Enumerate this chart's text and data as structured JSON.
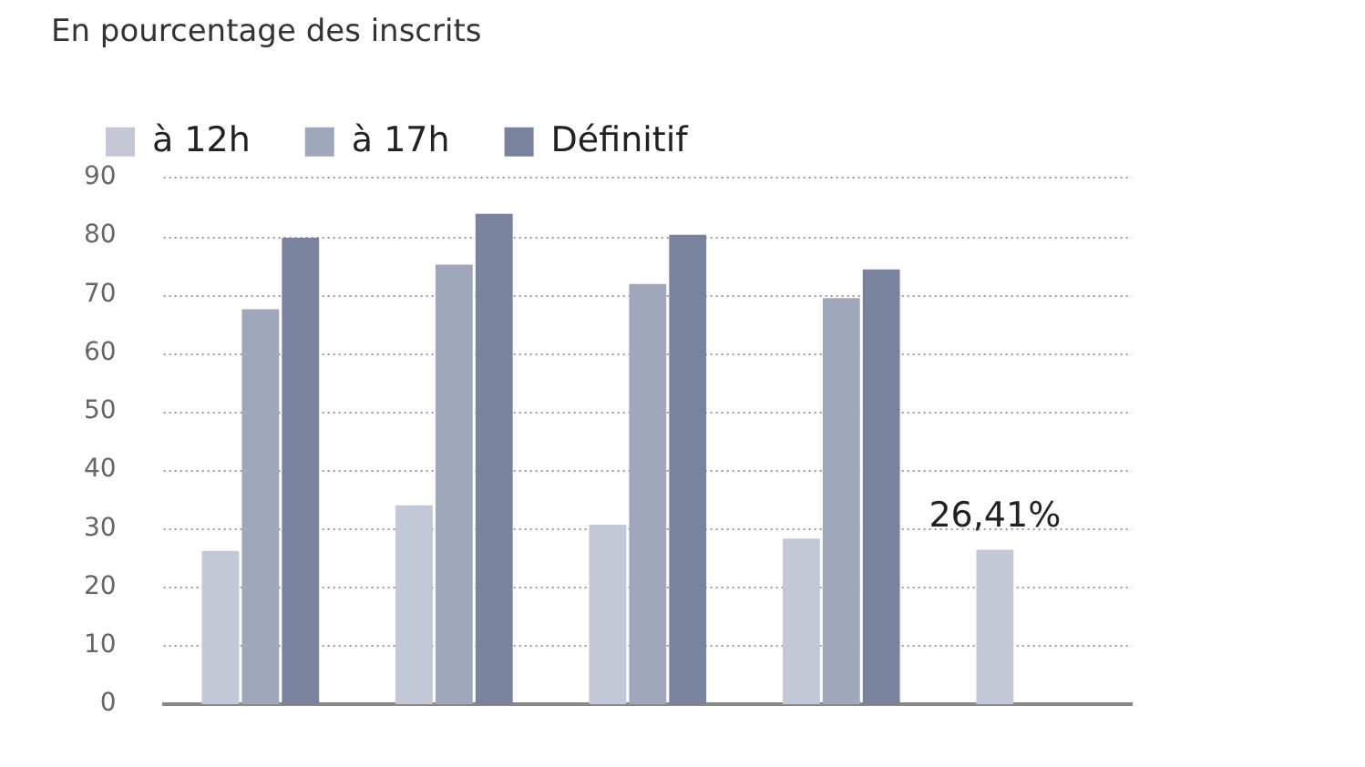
{
  "chart_data": {
    "type": "bar",
    "subtitle": "En pourcentage des inscrits",
    "categories": [
      null,
      null,
      null,
      null,
      null
    ],
    "series": [
      {
        "name": "à 12h",
        "color": "#c4c8d6",
        "values": [
          26.2,
          34.0,
          30.7,
          28.3,
          26.41
        ],
        "value_labels": [
          null,
          null,
          null,
          null,
          "26,41%"
        ]
      },
      {
        "name": "à 17h",
        "color": "#a0a7bb",
        "values": [
          67.5,
          75.1,
          71.8,
          69.4,
          null
        ]
      },
      {
        "name": "Définitif",
        "color": "#79839e",
        "values": [
          79.7,
          83.8,
          80.2,
          74.3,
          null
        ]
      }
    ],
    "ylim": [
      0,
      90
    ],
    "yticks": [
      0,
      10,
      20,
      30,
      40,
      50,
      60,
      70,
      80,
      90
    ],
    "grid": "y",
    "legend": "top left"
  }
}
